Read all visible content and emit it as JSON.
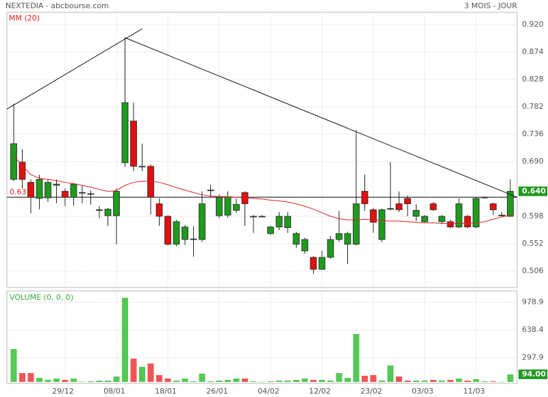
{
  "header": {
    "source": "NEXTEDIA - abcbourse.com",
    "period": "3 MOIS - JOUR"
  },
  "chart_data": [
    {
      "type": "candlestick",
      "categories": [
        null,
        null,
        null,
        null,
        null,
        null,
        "29/12",
        null,
        null,
        null,
        null,
        null,
        "08/01",
        null,
        null,
        null,
        null,
        null,
        "18/01",
        null,
        null,
        null,
        null,
        null,
        "26/01",
        null,
        null,
        null,
        null,
        null,
        "04/02",
        null,
        null,
        null,
        null,
        null,
        "12/02",
        null,
        null,
        null,
        null,
        null,
        "23/02",
        null,
        null,
        null,
        null,
        null,
        "03/03",
        null,
        null,
        null,
        null,
        null,
        "11/03",
        null,
        null,
        null,
        null
      ],
      "open": [
        0.66,
        0.689,
        0.655,
        0.628,
        0.629,
        0.65,
        0.64,
        0.63,
        0.637,
        0.636,
        0.608,
        0.599,
        0.599,
        0.688,
        0.758,
        0.682,
        0.682,
        0.619,
        0.598,
        0.551,
        0.559,
        0.56,
        0.559,
        0.642,
        0.599,
        0.6,
        0.608,
        0.638,
        0.598,
        0.598,
        0.569,
        0.58,
        0.579,
        0.551,
        0.54,
        0.529,
        0.509,
        0.529,
        0.559,
        0.551,
        0.551,
        0.64,
        0.609,
        0.559,
        0.61,
        0.619,
        0.628,
        0.598,
        0.589,
        0.619,
        0.589,
        0.589,
        0.58,
        0.598,
        0.58,
        0.629,
        0.619,
        0.6,
        0.598
      ],
      "high": [
        0.787,
        0.711,
        0.66,
        0.668,
        0.66,
        0.66,
        0.645,
        0.653,
        0.65,
        0.642,
        0.615,
        0.612,
        0.645,
        0.898,
        0.789,
        0.72,
        0.685,
        0.628,
        0.6,
        0.592,
        0.583,
        0.581,
        0.64,
        0.651,
        0.635,
        0.64,
        0.628,
        0.64,
        0.6,
        0.6,
        0.582,
        0.605,
        0.605,
        0.572,
        0.562,
        0.531,
        0.54,
        0.565,
        0.607,
        0.572,
        0.743,
        0.668,
        0.612,
        0.611,
        0.689,
        0.64,
        0.633,
        0.618,
        0.6,
        0.622,
        0.6,
        0.592,
        0.628,
        0.6,
        0.63,
        0.631,
        0.621,
        0.605,
        0.66
      ],
      "low": [
        0.657,
        0.645,
        0.603,
        0.61,
        0.622,
        0.62,
        0.615,
        0.616,
        0.62,
        0.618,
        0.595,
        0.582,
        0.551,
        0.681,
        0.674,
        0.674,
        0.601,
        0.582,
        0.549,
        0.548,
        0.55,
        0.53,
        0.555,
        0.63,
        0.595,
        0.596,
        0.604,
        0.582,
        0.57,
        0.597,
        0.567,
        0.575,
        0.57,
        0.545,
        0.535,
        0.501,
        0.508,
        0.527,
        0.555,
        0.518,
        0.549,
        0.607,
        0.57,
        0.555,
        0.608,
        0.605,
        0.598,
        0.59,
        0.587,
        0.607,
        0.585,
        0.578,
        0.578,
        0.578,
        0.578,
        0.628,
        0.6,
        0.598,
        0.597
      ],
      "close": [
        0.72,
        0.66,
        0.63,
        0.66,
        0.655,
        0.652,
        0.63,
        0.652,
        0.638,
        0.636,
        0.609,
        0.61,
        0.64,
        0.789,
        0.682,
        0.682,
        0.63,
        0.598,
        0.551,
        0.589,
        0.58,
        0.56,
        0.619,
        0.642,
        0.63,
        0.631,
        0.618,
        0.619,
        0.598,
        0.598,
        0.58,
        0.598,
        0.598,
        0.569,
        0.559,
        0.509,
        0.529,
        0.559,
        0.569,
        0.569,
        0.619,
        0.619,
        0.588,
        0.609,
        0.611,
        0.609,
        0.619,
        0.608,
        0.598,
        0.609,
        0.598,
        0.58,
        0.619,
        0.58,
        0.628,
        0.63,
        0.609,
        0.6,
        0.64
      ],
      "up_color": "#1f9a1f",
      "down_color": "#e01010",
      "series": [
        {
          "name": "MM (20)",
          "color": "#e02020",
          "values": [
            0.7,
            0.683,
            0.668,
            0.662,
            0.66,
            0.658,
            0.655,
            0.653,
            0.65,
            0.647,
            0.643,
            0.64,
            0.641,
            0.65,
            0.655,
            0.657,
            0.657,
            0.655,
            0.651,
            0.646,
            0.642,
            0.638,
            0.634,
            0.632,
            0.631,
            0.631,
            0.63,
            0.629,
            0.628,
            0.627,
            0.625,
            0.624,
            0.622,
            0.619,
            0.615,
            0.61,
            0.604,
            0.598,
            0.594,
            0.592,
            0.592,
            0.593,
            0.592,
            0.591,
            0.59,
            0.59,
            0.589,
            0.588,
            0.587,
            0.587,
            0.586,
            0.586,
            0.586,
            0.586,
            0.587,
            0.589,
            0.593,
            0.597,
            0.6
          ]
        }
      ],
      "ylim": [
        0.4784,
        0.9407
      ],
      "yticks": [
        {
          "value": 0.92,
          "label": "0.920"
        },
        {
          "value": 0.874,
          "label": "0.874"
        },
        {
          "value": 0.828,
          "label": "0.828"
        },
        {
          "value": 0.782,
          "label": "0.782"
        },
        {
          "value": 0.736,
          "label": "0.736"
        },
        {
          "value": 0.69,
          "label": "0.690"
        },
        {
          "value": 0.598,
          "label": "0.598"
        },
        {
          "value": 0.552,
          "label": "0.552"
        },
        {
          "value": 0.506,
          "label": "0.506"
        }
      ],
      "last_value_label": {
        "value": 0.64,
        "label": "0.640"
      },
      "hline": 0.63,
      "trendlines": [
        {
          "x": [
            -0.8,
            15
          ],
          "y": [
            0.778,
            0.913
          ]
        },
        {
          "x": [
            13,
            58.8
          ],
          "y": [
            0.898,
            0.63
          ]
        }
      ],
      "grid": true
    },
    {
      "type": "bar",
      "title": "VOLUME (0, 0, 0)",
      "values": [
        404,
        109,
        109,
        50,
        25,
        42,
        25,
        42,
        5,
        8,
        17,
        17,
        67,
        1034,
        286,
        185,
        227,
        84,
        42,
        17,
        42,
        8,
        101,
        8,
        17,
        25,
        42,
        42,
        8,
        3,
        8,
        17,
        17,
        25,
        42,
        25,
        25,
        17,
        109,
        50,
        589,
        76,
        84,
        17,
        202,
        67,
        17,
        17,
        17,
        25,
        17,
        25,
        42,
        17,
        34,
        8,
        8,
        3,
        94
      ],
      "up_color": "#55c855",
      "down_color": "#f05555",
      "ylim": [
        0,
        1119
      ],
      "yticks": [
        978.9,
        638.4,
        297.9
      ],
      "last_value_label": {
        "value": 94,
        "label": "94.00"
      },
      "grid": true
    }
  ]
}
